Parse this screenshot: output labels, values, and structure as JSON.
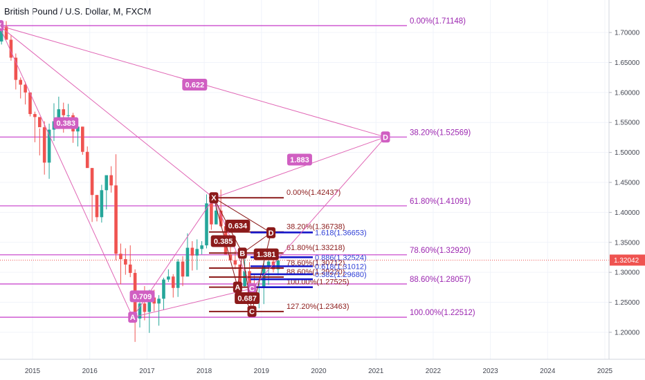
{
  "header": {
    "title": "British Pound / U.S. Dollar, M, FXCM"
  },
  "colors": {
    "up": "#26a69a",
    "down": "#ef5350",
    "big": "#c539c9",
    "bigLabel": "#9c27b0",
    "pattern": "#e064b4",
    "small": "#8b1a1a",
    "smallLabel": "#8b1a1a",
    "blue": "#1515c8",
    "current": "#ef5350",
    "grid": "#f0f3fa",
    "axisText": "#434651"
  },
  "chart_data": {
    "type": "candlestick",
    "symbol": "GBP/USD",
    "interval": "M",
    "source": "FXCM",
    "x_axis": {
      "ticks": [
        "2015",
        "2016",
        "2017",
        "2018",
        "2019",
        "2020",
        "2021",
        "2022",
        "2023",
        "2024",
        "2025"
      ]
    },
    "y_axis": {
      "range": [
        1.155,
        1.745
      ],
      "ticks": [
        "1.70000",
        "1.65000",
        "1.60000",
        "1.55000",
        "1.50000",
        "1.45000",
        "1.40000",
        "1.35000",
        "1.30000",
        "1.25000",
        "1.20000"
      ]
    },
    "current_price": {
      "value": 1.32042,
      "label": "1.32042"
    },
    "candles_monthly_from_2014_05": [
      [
        1.6787,
        1.699,
        1.669,
        1.685
      ],
      [
        1.685,
        1.71,
        1.68,
        1.71
      ],
      [
        1.71,
        1.719,
        1.69,
        1.688
      ],
      [
        1.688,
        1.695,
        1.653,
        1.658
      ],
      [
        1.658,
        1.665,
        1.605,
        1.621
      ],
      [
        1.621,
        1.625,
        1.59,
        1.613
      ],
      [
        1.613,
        1.618,
        1.58,
        1.6
      ],
      [
        1.6,
        1.6,
        1.56,
        1.564
      ],
      [
        1.564,
        1.568,
        1.517,
        1.559
      ],
      [
        1.559,
        1.54,
        1.495,
        1.542
      ],
      [
        1.542,
        1.552,
        1.463,
        1.483
      ],
      [
        1.483,
        1.548,
        1.456,
        1.538
      ],
      [
        1.538,
        1.582,
        1.519,
        1.552
      ],
      [
        1.552,
        1.593,
        1.55,
        1.572
      ],
      [
        1.572,
        1.583,
        1.533,
        1.562
      ],
      [
        1.562,
        1.581,
        1.541,
        1.562
      ],
      [
        1.562,
        1.566,
        1.516,
        1.535
      ],
      [
        1.535,
        1.556,
        1.51,
        1.543
      ],
      [
        1.543,
        1.543,
        1.496,
        1.501
      ],
      [
        1.501,
        1.51,
        1.475,
        1.474
      ],
      [
        1.474,
        1.474,
        1.384,
        1.429
      ],
      [
        1.429,
        1.429,
        1.385,
        1.392
      ],
      [
        1.392,
        1.446,
        1.383,
        1.437
      ],
      [
        1.437,
        1.46,
        1.405,
        1.462
      ],
      [
        1.462,
        1.477,
        1.433,
        1.445
      ],
      [
        1.445,
        1.497,
        1.32,
        1.331
      ],
      [
        1.331,
        1.348,
        1.28,
        1.322
      ],
      [
        1.322,
        1.34,
        1.296,
        1.313
      ],
      [
        1.313,
        1.345,
        1.292,
        1.299
      ],
      [
        1.299,
        1.305,
        1.184,
        1.223
      ],
      [
        1.223,
        1.258,
        1.208,
        1.248
      ],
      [
        1.248,
        1.277,
        1.22,
        1.234
      ],
      [
        1.234,
        1.271,
        1.199,
        1.258
      ],
      [
        1.258,
        1.271,
        1.235,
        1.248
      ],
      [
        1.248,
        1.262,
        1.211,
        1.256
      ],
      [
        1.256,
        1.291,
        1.237,
        1.288
      ],
      [
        1.288,
        1.305,
        1.284,
        1.293
      ],
      [
        1.293,
        1.297,
        1.258,
        1.274
      ],
      [
        1.274,
        1.322,
        1.259,
        1.318
      ],
      [
        1.318,
        1.327,
        1.277,
        1.293
      ],
      [
        1.293,
        1.365,
        1.295,
        1.341
      ],
      [
        1.341,
        1.352,
        1.303,
        1.328
      ],
      [
        1.328,
        1.355,
        1.304,
        1.339
      ],
      [
        1.339,
        1.352,
        1.33,
        1.345
      ],
      [
        1.345,
        1.43,
        1.34,
        1.415
      ],
      [
        1.415,
        1.414,
        1.371,
        1.38
      ],
      [
        1.38,
        1.424,
        1.38,
        1.403
      ],
      [
        1.403,
        1.438,
        1.375,
        1.377
      ],
      [
        1.377,
        1.377,
        1.33,
        1.33
      ],
      [
        1.33,
        1.347,
        1.32,
        1.32
      ],
      [
        1.32,
        1.336,
        1.305,
        1.313
      ],
      [
        1.313,
        1.312,
        1.267,
        1.277
      ],
      [
        1.277,
        1.329,
        1.275,
        1.302
      ],
      [
        1.302,
        1.317,
        1.269,
        1.277
      ],
      [
        1.277,
        1.295,
        1.275,
        1.274
      ],
      [
        1.274,
        1.284,
        1.24,
        1.275
      ],
      [
        1.275,
        1.322,
        1.247,
        1.311
      ],
      [
        1.311,
        1.331,
        1.279,
        1.318
      ],
      [
        1.318,
        1.338,
        1.3,
        1.305
      ],
      [
        1.305,
        1.312,
        1.295,
        1.32
      ]
    ],
    "fib_large": [
      {
        "label": "0.00%(1.71148)",
        "price": 1.71148
      },
      {
        "label": "38.20%(1.52569)",
        "price": 1.52569
      },
      {
        "label": "61.80%(1.41091)",
        "price": 1.41091
      },
      {
        "label": "78.60%(1.32920)",
        "price": 1.3292
      },
      {
        "label": "88.60%(1.28057)",
        "price": 1.28057
      },
      {
        "label": "100.00%(1.22512)",
        "price": 1.22512
      }
    ],
    "fib_small": [
      {
        "label": "0.00%(1.42437)",
        "price": 1.42437
      },
      {
        "label": "38.20%(1.36738)",
        "price": 1.36738
      },
      {
        "label": "61.80%(1.33218)",
        "price": 1.33218
      },
      {
        "label": "78.60%(1.30712)",
        "price": 1.30712
      },
      {
        "label": "88.60%(1.29220)",
        "price": 1.2922
      },
      {
        "label": "100.00%(1.27525)",
        "price": 1.27525
      },
      {
        "label": "127.20%(1.23463)",
        "price": 1.23463
      }
    ],
    "blue_levels": [
      {
        "label": "1.618(1.36653)",
        "price": 1.36653
      },
      {
        "label": "0.886(1.32524)",
        "price": 1.32524
      },
      {
        "label": "0.618(1.31012)",
        "price": 1.31012
      },
      {
        "label": "0.382(1.29680)",
        "price": 1.2968
      },
      {
        "label": "",
        "price": 1.2885
      },
      {
        "label": "",
        "price": 1.27525
      }
    ],
    "pattern_large": {
      "points": [
        {
          "label": "X",
          "date": "2014-06",
          "price": 1.7115
        },
        {
          "label": "A",
          "date": "2016-10",
          "price": 1.2251
        },
        {
          "label": "B",
          "date": "2018-03",
          "price": 1.424
        },
        {
          "label": "C",
          "date": "2018-11",
          "price": 1.273
        },
        {
          "label": "D",
          "date": "2021-03",
          "price": 1.5257
        }
      ],
      "ratios": [
        {
          "label": "0.383",
          "date": "2015-08",
          "price": 1.549
        },
        {
          "label": "0.622",
          "date": "2017-11",
          "price": 1.613
        },
        {
          "label": "1.883",
          "date": "2019-09",
          "price": 1.488
        },
        {
          "label": "0.709",
          "date": "2016-12",
          "price": 1.26
        }
      ]
    },
    "pattern_small": {
      "points": [
        {
          "label": "X",
          "date": "2018-03",
          "price": 1.4244
        },
        {
          "label": "A",
          "date": "2018-08",
          "price": 1.2753
        },
        {
          "label": "B",
          "date": "2018-09",
          "price": 1.332
        },
        {
          "label": "C",
          "date": "2018-11",
          "price": 1.235
        },
        {
          "label": "D",
          "date": "2019-03",
          "price": 1.366
        }
      ],
      "ratios": [
        {
          "label": "0.634",
          "date": "2018-08",
          "price": 1.378
        },
        {
          "label": "0.385",
          "date": "2018-05",
          "price": 1.352
        },
        {
          "label": "1.381",
          "date": "2019-02",
          "price": 1.33
        },
        {
          "label": "0.687",
          "date": "2018-10",
          "price": 1.257
        }
      ]
    }
  }
}
